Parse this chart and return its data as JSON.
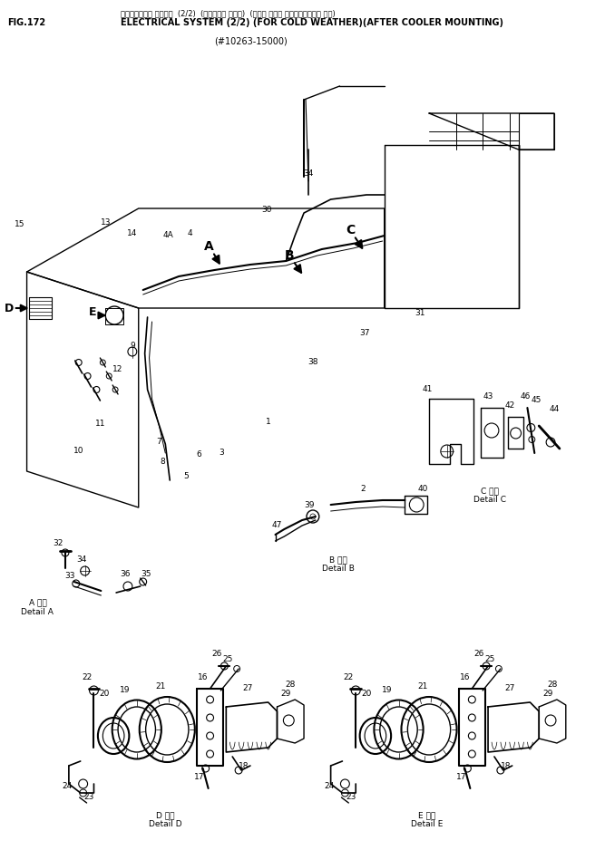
{
  "title_jp": "エレクトリカル システム  (2/2)  (カスレイチ ショウ)  (アフタ クーラ マウンティング・ シキ)",
  "title_en": "ELECTRICAL SYSTEM (2/2) (FOR COLD WEATHER)(AFTER COOLER MOUNTING)",
  "fig_num": "FIG.172",
  "serial": "(#10263-15000)",
  "bg_color": "#ffffff",
  "lc": "#000000",
  "fc": "#000000"
}
